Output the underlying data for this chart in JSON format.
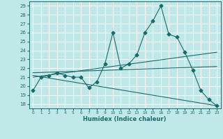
{
  "title": "",
  "xlabel": "Humidex (Indice chaleur)",
  "xlim": [
    -0.5,
    23.5
  ],
  "ylim": [
    17.5,
    29.5
  ],
  "yticks": [
    18,
    19,
    20,
    21,
    22,
    23,
    24,
    25,
    26,
    27,
    28,
    29
  ],
  "xticks": [
    0,
    1,
    2,
    3,
    4,
    5,
    6,
    7,
    8,
    9,
    10,
    11,
    12,
    13,
    14,
    15,
    16,
    17,
    18,
    19,
    20,
    21,
    22,
    23
  ],
  "bg_color": "#c0e8e8",
  "grid_color": "#ffffff",
  "line_color": "#1a6b6b",
  "main_series": {
    "x": [
      0,
      1,
      2,
      3,
      4,
      5,
      6,
      7,
      8,
      9,
      10,
      11,
      12,
      13,
      14,
      15,
      16,
      17,
      18,
      19,
      20,
      21,
      22,
      23
    ],
    "y": [
      19.5,
      21.0,
      21.2,
      21.5,
      21.2,
      21.0,
      21.0,
      19.8,
      20.5,
      22.5,
      26.0,
      22.0,
      22.5,
      23.5,
      26.0,
      27.3,
      29.0,
      25.8,
      25.5,
      23.8,
      21.8,
      19.5,
      18.5,
      17.8
    ]
  },
  "trend_lines": [
    {
      "x": [
        0,
        23
      ],
      "y": [
        21.0,
        23.8
      ]
    },
    {
      "x": [
        0,
        23
      ],
      "y": [
        21.5,
        22.2
      ]
    },
    {
      "x": [
        0,
        23
      ],
      "y": [
        21.2,
        17.8
      ]
    }
  ]
}
